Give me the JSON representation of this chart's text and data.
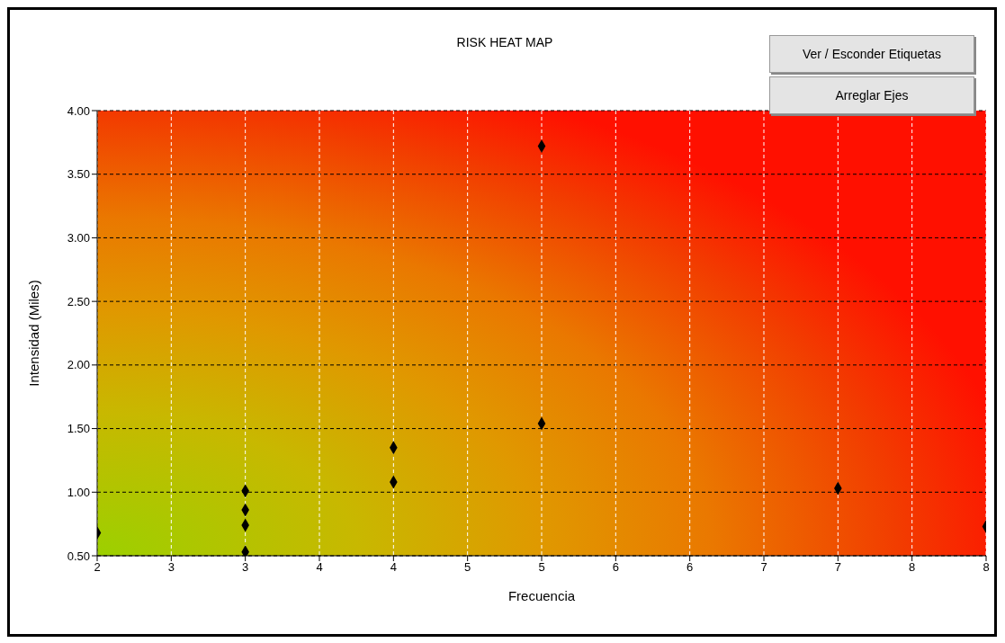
{
  "chart_data": {
    "type": "scatter",
    "title": "RISK HEAT MAP",
    "xlabel": "Frecuencia",
    "ylabel": "Intensidad (Miles)",
    "annotations": [
      "Ver / Esconder Etiquetas",
      "Arreglar Ejes"
    ],
    "x": [
      2,
      3,
      3,
      3,
      3,
      4,
      4,
      5,
      5,
      7,
      8
    ],
    "series": [
      {
        "color": "#000000",
        "values": [
          0.68,
          1.01,
          0.86,
          0.74,
          0.53,
          1.35,
          1.08,
          3.72,
          1.54,
          1.03,
          0.73
        ]
      }
    ],
    "xlim": [
      2,
      8
    ],
    "xticks": [
      2,
      {
        "value": 2.5,
        "label": "3"
      },
      3,
      {
        "value": 3.5,
        "label": "4"
      },
      4,
      {
        "value": 4.5,
        "label": "5"
      },
      5,
      {
        "value": 5.5,
        "label": "6"
      },
      6,
      {
        "value": 6.5,
        "label": "7"
      },
      7,
      {
        "value": 7.5,
        "label": "8"
      },
      8
    ],
    "ylim": [
      0.5,
      4
    ],
    "yticks": [
      {
        "value": 0.5,
        "label": "0.50"
      },
      {
        "value": 1,
        "label": "1.00"
      },
      {
        "value": 1.5,
        "label": "1.50"
      },
      {
        "value": 2,
        "label": "2.00"
      },
      {
        "value": 2.5,
        "label": "2.50"
      },
      {
        "value": 3,
        "label": "3.00"
      },
      {
        "value": 3.5,
        "label": "3.50"
      },
      {
        "value": 4,
        "label": "4.00"
      }
    ],
    "grid": true,
    "marker": "diamond"
  }
}
